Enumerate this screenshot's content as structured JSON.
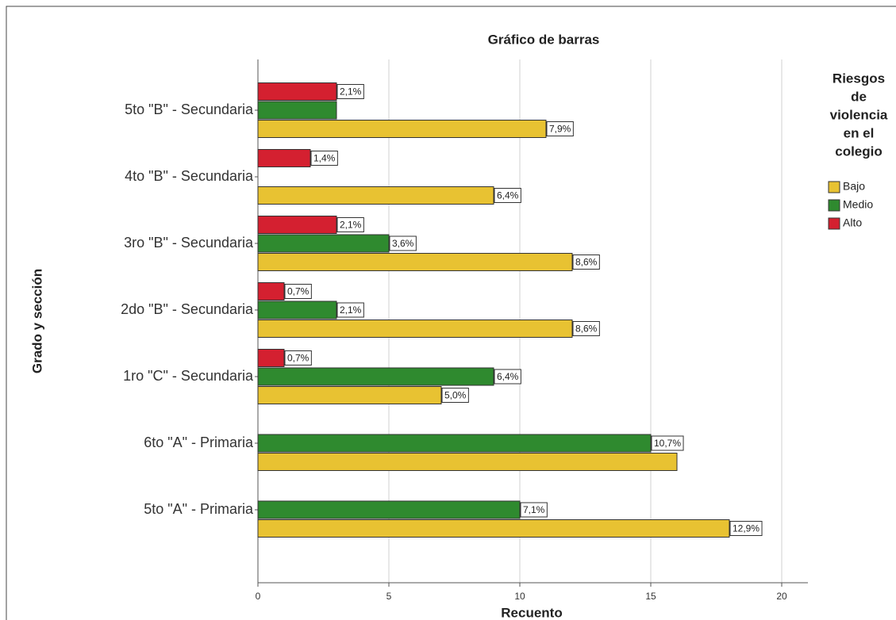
{
  "chart_data": {
    "type": "bar",
    "orientation": "horizontal",
    "title": "Gráfico de barras",
    "x_label": "Recuento",
    "y_label": "Grado y sección",
    "legend_title": [
      "Riesgos",
      "de",
      "violencia",
      "en el",
      "colegio"
    ],
    "legend_position": "right",
    "categories": [
      "5to \"B\" - Secundaria",
      "4to \"B\" - Secundaria",
      "3ro \"B\" - Secundaria",
      "2do \"B\" - Secundaria",
      "1ro \"C\" - Secundaria",
      "6to \"A\" - Primaria",
      "5to \"A\" - Primaria"
    ],
    "series": [
      {
        "name": "Bajo",
        "color": "#e8c232",
        "values": [
          11,
          9,
          12,
          12,
          7,
          16,
          18
        ],
        "value_labels": [
          "7,9%",
          "6,4%",
          "8,6%",
          "8,6%",
          "5,0%",
          null,
          "12,9%"
        ]
      },
      {
        "name": "Medio",
        "color": "#2f8a2f",
        "values": [
          3,
          null,
          5,
          3,
          9,
          15,
          10
        ],
        "value_labels": [
          null,
          null,
          "3,6%",
          "2,1%",
          "6,4%",
          "10,7%",
          "7,1%"
        ]
      },
      {
        "name": "Alto",
        "color": "#d42030",
        "values": [
          3,
          2,
          3,
          1,
          1,
          null,
          null
        ],
        "value_labels": [
          "2,1%",
          "1,4%",
          "2,1%",
          "0,7%",
          "0,7%",
          null,
          null
        ]
      }
    ],
    "xlim": [
      0,
      21
    ],
    "xticks": [
      0,
      5,
      10,
      15,
      20
    ],
    "grid": true
  }
}
